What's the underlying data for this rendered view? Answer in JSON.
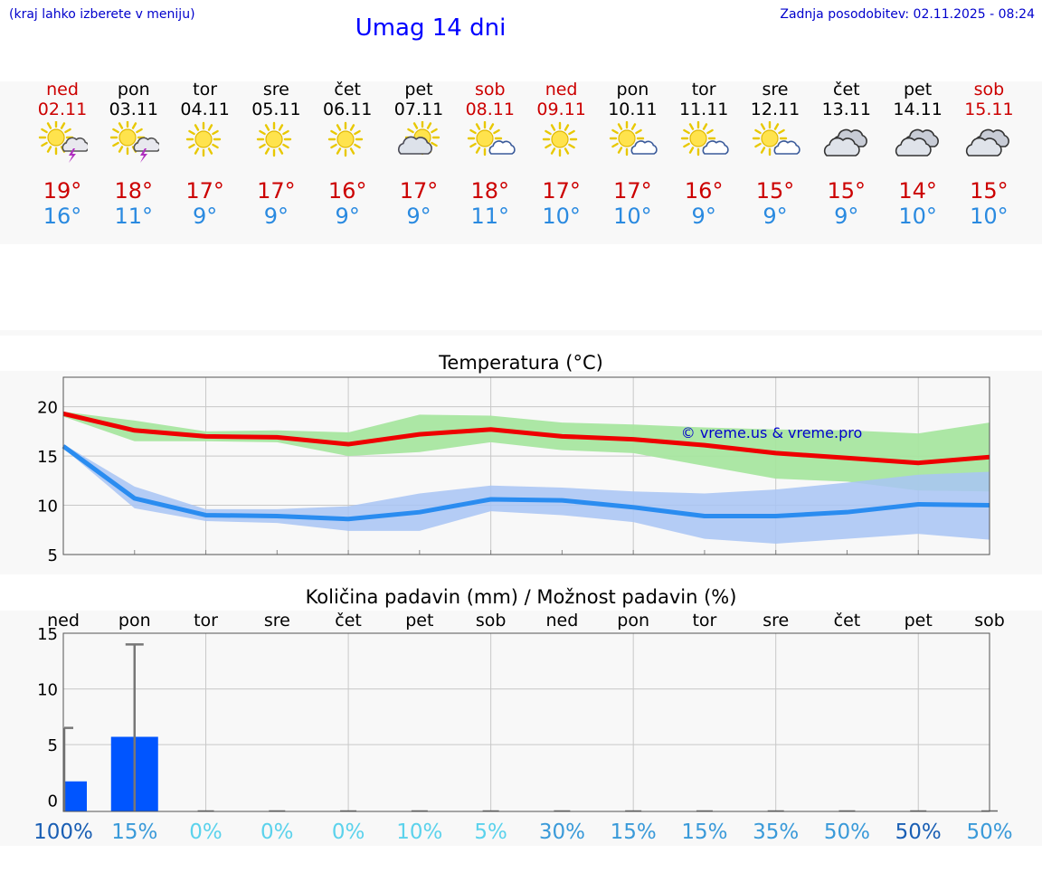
{
  "header": {
    "left_note": "(kraj lahko izberete v meniju)",
    "title": "Umag 14 dni",
    "updated": "Zadnja posodobitev: 02.11.2025 - 08:24"
  },
  "forecast": [
    {
      "day": "ned",
      "date": "02.11",
      "icon": "sun-cloud-thunder-icon",
      "max": "19°",
      "min": "16°",
      "weekend": true
    },
    {
      "day": "pon",
      "date": "03.11",
      "icon": "sun-cloud-thunder-icon",
      "max": "18°",
      "min": "11°",
      "weekend": false
    },
    {
      "day": "tor",
      "date": "04.11",
      "icon": "sun-icon",
      "max": "17°",
      "min": "9°",
      "weekend": false
    },
    {
      "day": "sre",
      "date": "05.11",
      "icon": "sun-icon",
      "max": "17°",
      "min": "9°",
      "weekend": false
    },
    {
      "day": "čet",
      "date": "06.11",
      "icon": "sun-icon",
      "max": "16°",
      "min": "9°",
      "weekend": false
    },
    {
      "day": "pet",
      "date": "07.11",
      "icon": "sun-behind-cloud-icon",
      "max": "17°",
      "min": "9°",
      "weekend": false
    },
    {
      "day": "sob",
      "date": "08.11",
      "icon": "sun-small-cloud-icon",
      "max": "18°",
      "min": "11°",
      "weekend": true
    },
    {
      "day": "ned",
      "date": "09.11",
      "icon": "sun-icon",
      "max": "17°",
      "min": "10°",
      "weekend": true
    },
    {
      "day": "pon",
      "date": "10.11",
      "icon": "sun-small-cloud-icon",
      "max": "17°",
      "min": "10°",
      "weekend": false
    },
    {
      "day": "tor",
      "date": "11.11",
      "icon": "sun-small-cloud-icon",
      "max": "16°",
      "min": "9°",
      "weekend": false
    },
    {
      "day": "sre",
      "date": "12.11",
      "icon": "sun-small-cloud-icon",
      "max": "15°",
      "min": "9°",
      "weekend": false
    },
    {
      "day": "čet",
      "date": "13.11",
      "icon": "cloudy-icon",
      "max": "15°",
      "min": "9°",
      "weekend": false
    },
    {
      "day": "pet",
      "date": "14.11",
      "icon": "cloudy-icon",
      "max": "14°",
      "min": "10°",
      "weekend": false
    },
    {
      "day": "sob",
      "date": "15.11",
      "icon": "cloudy-icon",
      "max": "15°",
      "min": "10°",
      "weekend": true
    }
  ],
  "colors": {
    "weekend": "#cc0000",
    "weekday": "#000000",
    "max": "#cc0000",
    "min": "#2a8ae0",
    "max_line": "#ee0000",
    "max_band": "#a8e6a0",
    "min_line": "#2a8cf0",
    "min_band": "#a8c4f4",
    "precip_bar": "#0055ff",
    "watermark": "#0000cc"
  },
  "chart_data": [
    {
      "type": "line",
      "title": "Temperatura (°C)",
      "watermark": "© vreme.us & vreme.pro",
      "x": [
        0,
        1,
        2,
        3,
        4,
        5,
        6,
        7,
        8,
        9,
        10,
        11,
        12,
        13
      ],
      "ylim": [
        5,
        23
      ],
      "yticks": [
        5,
        10,
        15,
        20
      ],
      "series": [
        {
          "name": "max",
          "values": [
            19.3,
            17.6,
            17.0,
            16.9,
            16.2,
            17.2,
            17.7,
            17.0,
            16.7,
            16.1,
            15.3,
            14.8,
            14.3,
            14.9
          ],
          "band_low": [
            19.0,
            16.5,
            16.5,
            16.4,
            15.0,
            15.4,
            16.4,
            15.6,
            15.3,
            14.0,
            12.7,
            12.4,
            11.5,
            11.4
          ],
          "band_high": [
            19.5,
            18.6,
            17.5,
            17.6,
            17.4,
            19.2,
            19.1,
            18.4,
            18.2,
            17.9,
            17.7,
            17.6,
            17.3,
            18.4
          ]
        },
        {
          "name": "min",
          "values": [
            16.0,
            10.7,
            9.0,
            8.9,
            8.6,
            9.3,
            10.6,
            10.5,
            9.8,
            8.9,
            8.9,
            9.3,
            10.1,
            10.0
          ],
          "band_low": [
            15.8,
            9.7,
            8.4,
            8.2,
            7.4,
            7.4,
            9.4,
            9.0,
            8.3,
            6.6,
            6.1,
            6.6,
            7.1,
            6.5
          ],
          "band_high": [
            16.2,
            11.9,
            9.6,
            9.6,
            9.9,
            11.2,
            12.0,
            11.8,
            11.4,
            11.2,
            11.6,
            12.3,
            13.1,
            13.4
          ]
        }
      ]
    },
    {
      "type": "bar",
      "title": "Količina padavin (mm) / Možnost padavin (%)",
      "categories": [
        "ned",
        "pon",
        "tor",
        "sre",
        "čet",
        "pet",
        "sob",
        "ned",
        "pon",
        "tor",
        "sre",
        "čet",
        "pet",
        "sob"
      ],
      "values": [
        1.7,
        5.7,
        0,
        0,
        0,
        0,
        0,
        0,
        0,
        0,
        0,
        0,
        0,
        0
      ],
      "error_max": [
        6.5,
        14.0,
        0,
        0,
        0,
        0,
        0,
        0,
        0,
        0,
        0,
        0,
        0,
        0
      ],
      "ylim": [
        -1,
        15
      ],
      "yticks": [
        0,
        5,
        10,
        15
      ],
      "probability": [
        "100%",
        "15%",
        "0%",
        "0%",
        "0%",
        "10%",
        "5%",
        "30%",
        "15%",
        "15%",
        "35%",
        "50%",
        "50%",
        "50%"
      ],
      "probability_colors": [
        "#1a5fb4",
        "#3a9ad9",
        "#5bd2ec",
        "#5bd2ec",
        "#5bd2ec",
        "#5bd2ec",
        "#5bd2ec",
        "#3a9ad9",
        "#3a9ad9",
        "#3a9ad9",
        "#3a9ad9",
        "#3a9ad9",
        "#1a5fb4",
        "#3a9ad9"
      ]
    }
  ]
}
